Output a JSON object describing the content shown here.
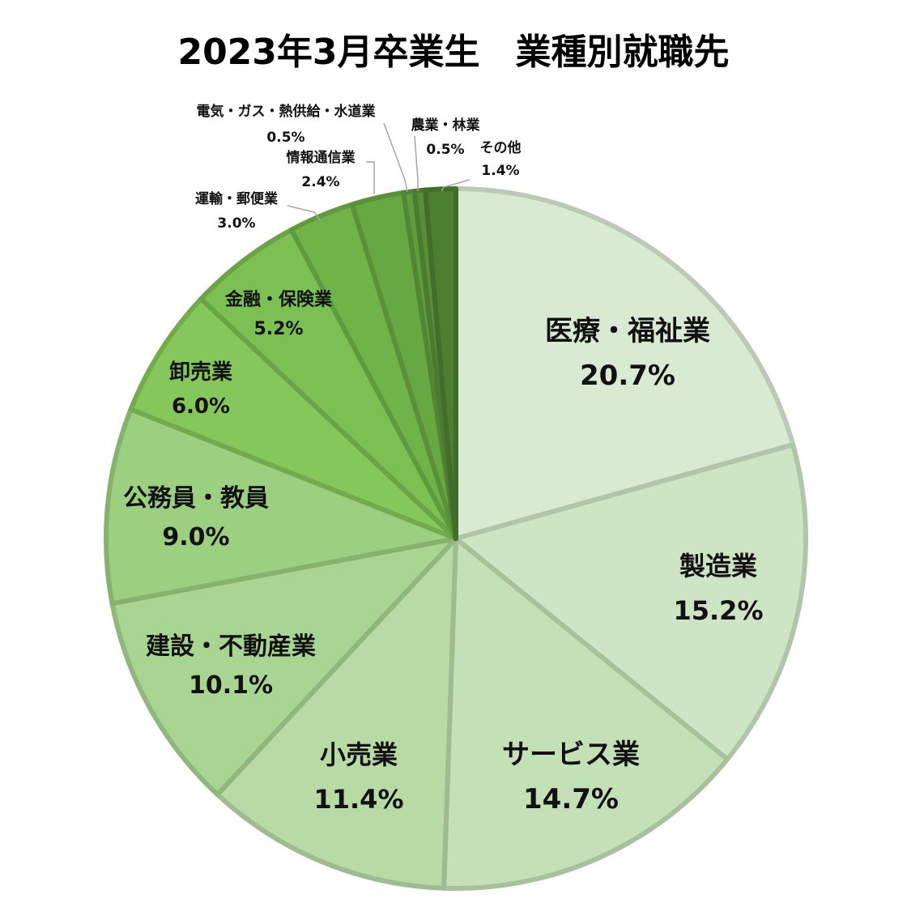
{
  "chart_data": {
    "type": "pie",
    "title": "2023年3月卒業生　業種別就職先",
    "slices": [
      {
        "label": "医療・福祉業",
        "value": 20.7,
        "pct_label": "20.7%",
        "color": "#d9ead3"
      },
      {
        "label": "製造業",
        "value": 15.2,
        "pct_label": "15.2%",
        "color": "#cde5c4"
      },
      {
        "label": "サービス業",
        "value": 14.7,
        "pct_label": "14.7%",
        "color": "#c3e0b6"
      },
      {
        "label": "小売業",
        "value": 11.4,
        "pct_label": "11.4%",
        "color": "#b8dba6"
      },
      {
        "label": "建設・不動産業",
        "value": 10.1,
        "pct_label": "10.1%",
        "color": "#a9d593"
      },
      {
        "label": "公務員・教員",
        "value": 9.0,
        "pct_label": "9.0%",
        "color": "#9ccf80"
      },
      {
        "label": "卸売業",
        "value": 6.0,
        "pct_label": "6.0%",
        "color": "#85c75a"
      },
      {
        "label": "金融・保険業",
        "value": 5.2,
        "pct_label": "5.2%",
        "color": "#7cbf52"
      },
      {
        "label": "運輸・郵便業",
        "value": 3.0,
        "pct_label": "3.0%",
        "color": "#70b349"
      },
      {
        "label": "情報通信業",
        "value": 2.4,
        "pct_label": "2.4%",
        "color": "#67a842"
      },
      {
        "label": "電気・ガス・熱供給・水道業",
        "value": 0.5,
        "pct_label": "0.5%",
        "color": "#5f9c3e"
      },
      {
        "label": "農業・林業",
        "value": 0.5,
        "pct_label": "0.5%",
        "color": "#578f38"
      },
      {
        "label": "その他",
        "value": 1.4,
        "pct_label": "1.4%",
        "color": "#4d7f31"
      }
    ]
  }
}
